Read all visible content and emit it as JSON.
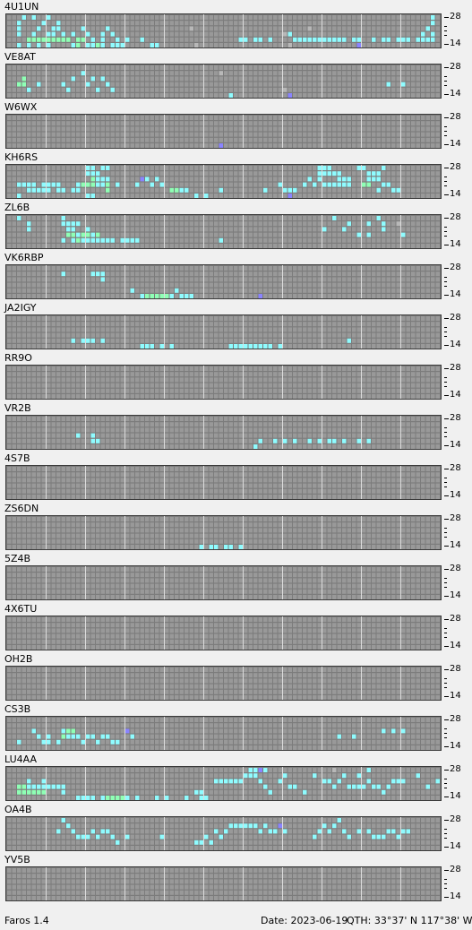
{
  "scale": {
    "top": "28",
    "bottom": "14"
  },
  "stations": [
    {
      "call": "4U1UN",
      "spots": "2:5:c,4:5:c,6:5:c,8:5:c,13:5:c,14:5:g,16:5:c,17:5:c,18:5:g,19:5:c,21:5:c,22:5:c,23:5:c,4:4:g,5:4:g,6:4:g,7:4:g,8:4:g,9:4:g,10:4:g,11:4:g,12:4:g,14:4:g,15:4:g,17:4:c,19:4:c,22:4:c,24:4:c,27:4:c,2:3:c,5:3:c,8:3:c,9:3:c,11:3:c,13:3:c,16:3:c,19:3:c,21:3:c,2:2:c,6:2:c,9:2:c,10:2:c,15:2:c,20:2:c,2:1:c,7:1:c,10:1:c,3:0:c,5:0:c,8:0:c,47:4:c,48:4:c,50:4:c,51:4:c,53:4:c,58:4:c,59:4:c,60:4:c,61:4:c,62:4:c,63:4:c,64:4:c,65:4:c,66:4:c,67:4:c,68:4:c,70:4:c,71:4:c,74:4:c,76:4:c,77:4:c,79:4:c,80:4:c,81:4:c,83:4:c,84:4:c,85:4:c,86:4:c,29:5:c,30:5:c,71:5:p,57:3:c,84:3:c,86:3:c,86:1:c,86:0:c,85:2:c,37:2:x,56:3:x,57:5:x,38:5:x,61:2:x"
    },
    {
      "call": "VE8AT",
      "spots": "2:3:g,3:3:g,3:2:g,4:4:c,6:3:c,11:3:c,12:4:c,13:2:c,15:1:c,16:3:c,17:2:c,19:2:c,20:3:c,21:4:c,18:4:c,57:5:p,77:3:c,80:3:c,45:5:c,43:1:x,56:4:x"
    },
    {
      "call": "W6WX",
      "spots": "43:5:p"
    },
    {
      "call": "KH6RS",
      "spots": "2:3:c,3:3:c,4:3:c,5:3:c,7:3:c,8:3:c,9:3:c,10:3:c,2:5:c,4:4:c,5:4:c,6:4:c,7:4:c,8:4:c,10:4:c,11:4:c,13:4:c,14:4:c,16:5:c,17:5:c,14:3:c,15:3:g,16:3:g,17:3:g,18:3:c,19:3:c,20:3:g,20:4:g,17:2:g,18:2:c,19:2:c,20:2:c,16:1:c,17:1:c,18:1:c,16:0:c,17:0:c,19:0:c,20:0:c,22:3:c,26:3:c,27:2:p,28:2:c,29:3:c,30:2:c,31:3:c,33:4:g,34:4:g,35:4:c,36:4:c,38:5:c,40:5:c,43:4:c,52:4:c,55:3:c,56:4:c,57:4:c,58:4:c,60:3:c,61:2:c,62:3:c,63:1:c,63:2:c,64:1:c,65:1:c,66:1:c,67:2:c,68:2:c,69:2:c,64:3:c,65:3:c,66:3:c,67:3:c,68:3:c,69:3:c,63:0:c,64:0:c,65:0:c,67:1:c,72:3:g,73:3:g,71:0:c,72:0:c,73:1:c,74:1:c,75:1:c,76:0:c,75:2:c,76:3:c,77:3:c,75:4:c,78:4:c,79:4:c,74:2:c,73:2:c,57:5:p"
    },
    {
      "call": "ZL6B",
      "spots": "2:0:c,4:1:c,4:2:c,11:1:c,12:1:c,13:1:c,14:1:c,12:2:c,13:2:c,12:3:g,13:3:g,14:3:c,15:3:g,16:3:g,17:3:c,18:3:g,11:4:c,13:4:c,14:4:g,15:4:c,16:4:c,17:4:c,18:4:c,19:4:c,20:4:c,21:4:c,23:4:c,24:4:c,25:4:c,26:4:c,16:2:c,11:0:c,43:4:c,66:0:c,64:2:c,68:2:c,69:1:c,73:1:c,75:0:c,76:1:c,76:2:c,71:3:c,73:3:c,80:3:c,79:1:x"
    },
    {
      "call": "VK6RBP",
      "spots": "11:1:c,17:1:c,18:1:c,19:2:c,19:1:c,25:4:c,27:5:c,28:5:g,29:5:g,30:5:g,31:5:g,32:5:g,33:5:c,34:4:c,35:5:c,36:5:c,37:5:c,51:5:p"
    },
    {
      "call": "JA2IGY",
      "spots": "13:4:c,15:4:c,16:4:c,17:4:c,19:4:c,27:5:c,28:5:c,29:5:c,31:5:c,33:5:c,45:5:c,46:5:c,47:5:c,48:5:c,49:5:c,50:5:c,51:5:c,52:5:c,53:5:c,55:5:c,69:4:c"
    },
    {
      "call": "RR9O",
      "spots": ""
    },
    {
      "call": "VR2B",
      "spots": "14:3:c,17:3:c,17:4:c,18:4:c,50:5:c,51:4:c,54:4:c,56:4:c,58:4:c,61:4:c,63:4:c,65:4:c,66:4:c,68:4:c,71:4:c,73:4:c"
    },
    {
      "call": "4S7B",
      "spots": ""
    },
    {
      "call": "ZS6DN",
      "spots": "39:5:c,41:5:c,42:5:c,44:5:c,45:5:c,47:5:c"
    },
    {
      "call": "5Z4B",
      "spots": ""
    },
    {
      "call": "4X6TU",
      "spots": ""
    },
    {
      "call": "OH2B",
      "spots": ""
    },
    {
      "call": "CS3B",
      "spots": "2:4:c,5:2:c,6:3:c,8:3:c,11:2:c,12:2:g,13:2:g,11:3:g,12:3:c,13:3:c,14:3:c,15:4:c,16:3:c,17:3:c,18:4:c,19:3:c,20:3:c,21:4:c,22:4:c,24:2:p,25:3:c,7:4:c,8:4:c,10:4:c,67:3:c,70:3:c,76:2:c,78:2:c,80:2:c"
    },
    {
      "call": "LU4AA",
      "spots": "2:3:g,2:4:g,3:4:g,4:4:g,5:4:g,6:4:g,7:4:g,3:3:g,4:3:c,5:3:c,6:3:c,7:3:c,8:3:c,9:3:c,10:3:c,11:3:c,4:2:c,7:2:c,11:4:c,14:5:c,15:5:c,16:5:c,17:5:c,19:5:c,20:5:g,21:5:g,22:5:g,23:5:g,24:5:c,26:5:c,30:5:c,32:5:c,36:5:c,38:4:c,39:4:c,39:5:c,40:5:c,42:2:c,43:2:c,44:2:c,45:2:c,46:2:c,47:2:c,48:1:c,49:1:c,50:1:c,51:0:p,49:0:c,50:0:c,52:0:c,51:2:c,52:3:c,53:4:c,55:2:c,56:1:c,57:3:c,58:3:c,60:4:c,62:1:c,64:2:c,65:2:c,66:3:c,67:2:c,68:1:c,69:3:c,70:3:c,71:3:c,72:3:c,73:2:c,74:3:c,75:3:c,76:4:c,77:3:c,78:2:c,79:2:c,80:2:c,73:0:c,83:1:c,85:3:c,87:2:c,71:1:c,66:0:x"
    },
    {
      "call": "OA4B",
      "spots": "10:2:c,11:0:c,12:1:c,13:2:c,14:3:c,15:3:c,16:3:c,17:2:c,18:3:c,19:2:c,20:2:c,21:3:c,22:4:c,24:3:c,31:3:c,38:4:c,39:4:c,40:3:c,41:4:c,42:2:c,43:3:c,44:2:c,45:1:c,46:1:c,47:1:c,48:1:c,49:1:c,50:1:c,51:2:c,52:1:c,53:2:c,54:2:c,55:1:p,56:2:c,62:3:c,63:2:c,64:1:c,65:2:c,66:1:c,67:0:c,68:2:c,69:3:c,71:2:c,73:2:c,74:3:c,75:3:c,76:3:c,77:2:c,78:2:c,79:3:c,80:2:c,81:2:c"
    },
    {
      "call": "YV5B",
      "spots": ""
    }
  ],
  "footer": {
    "app": "Faros 1.4",
    "date": "Date: 2023-06-19",
    "qth": "QTH: 33°37' N  117°38' W"
  },
  "colors": {
    "cyan": "#8ffcff",
    "green": "#8fffb5",
    "purple": "#8a84ff",
    "idle": "#999999",
    "noise": "#b8b8b8"
  }
}
